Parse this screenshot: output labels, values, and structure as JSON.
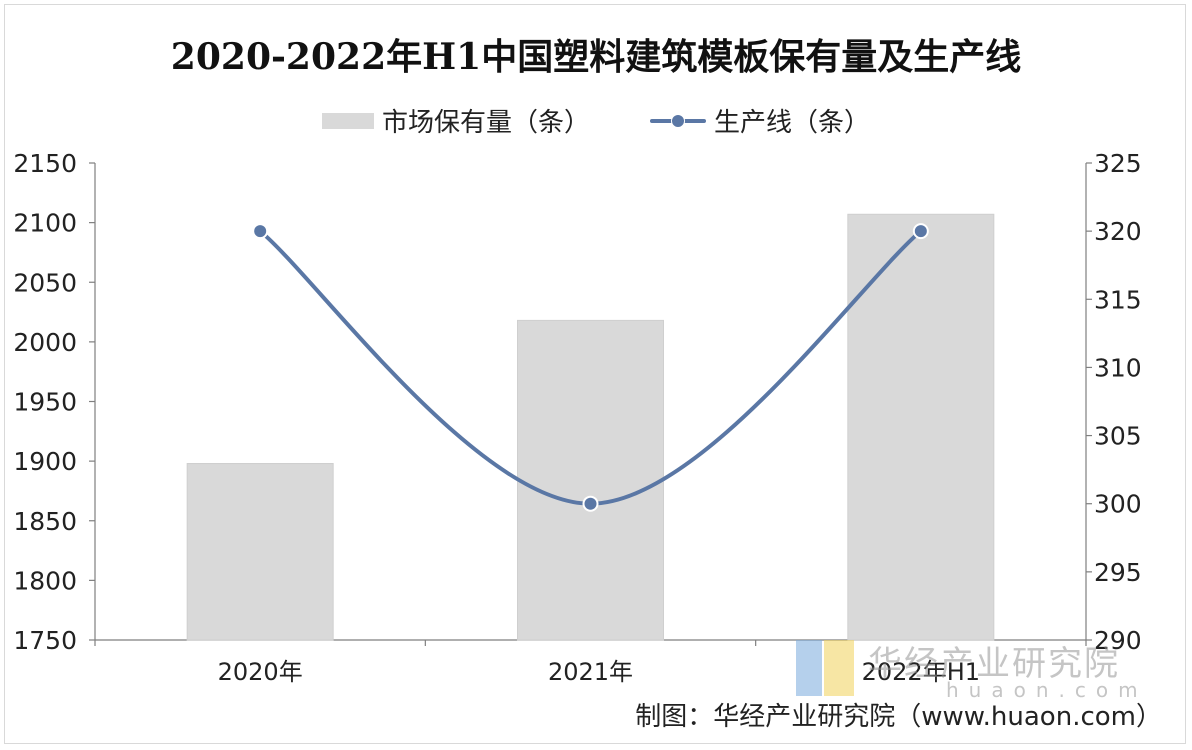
{
  "chart_data": {
    "type": "bar+line",
    "title": "2020-2022年H1中国塑料建筑模板保有量及生产线",
    "categories": [
      "2020年",
      "2021年",
      "2022年H1"
    ],
    "series": [
      {
        "name": "市场保有量（条）",
        "type": "bar",
        "axis": "left",
        "values": [
          1898,
          2018,
          2107
        ],
        "color": "#d9d9d9"
      },
      {
        "name": "生产线（条）",
        "type": "line",
        "axis": "right",
        "values": [
          320,
          300,
          320
        ],
        "color": "#5a77a5"
      }
    ],
    "y_left": {
      "min": 1750,
      "max": 2150,
      "ticks": [
        "1750",
        "1800",
        "1850",
        "1900",
        "1950",
        "2000",
        "2050",
        "2100",
        "2150"
      ]
    },
    "y_right": {
      "min": 290,
      "max": 325,
      "ticks": [
        "290",
        "295",
        "300",
        "305",
        "310",
        "315",
        "320",
        "325"
      ]
    },
    "legend_position": "top-center",
    "grid": false
  },
  "watermark": {
    "name": "华经产业研究院",
    "url": "huaon.com"
  },
  "source": "制图：华经产业研究院（www.huaon.com）"
}
